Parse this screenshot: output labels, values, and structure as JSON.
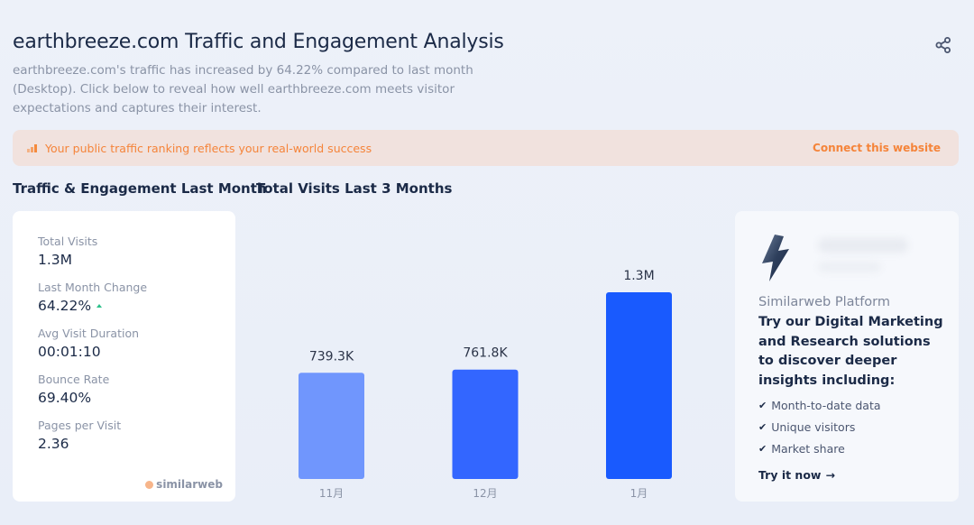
{
  "header": {
    "title": "earthbreeze.com Traffic and Engagement Analysis",
    "subtitle": "earthbreeze.com's traffic has increased by 64.22% compared to last month (Desktop). Click below to reveal how well earthbreeze.com meets visitor expectations and captures their interest.",
    "share_icon": "share-icon"
  },
  "banner": {
    "icon": "bar-chart-icon",
    "text": "Your public traffic ranking reflects your real-world success",
    "link": "Connect this website"
  },
  "sections": {
    "engagement_title": "Traffic & Engagement Last Month",
    "visits_title": "Total Visits Last 3 Months"
  },
  "stats": [
    {
      "label": "Total Visits",
      "value": "1.3M"
    },
    {
      "label": "Last Month Change",
      "value": "64.22%",
      "trend": "up"
    },
    {
      "label": "Avg Visit Duration",
      "value": "00:01:10"
    },
    {
      "label": "Bounce Rate",
      "value": "69.40%"
    },
    {
      "label": "Pages per Visit",
      "value": "2.36"
    }
  ],
  "brand": {
    "logo_text": "similarweb"
  },
  "colors": {
    "accent": "#195afe",
    "banner_text": "#f5843a",
    "trend_up": "#2cc08a"
  },
  "chart_data": {
    "type": "bar",
    "title": "Total Visits Last 3 Months",
    "categories": [
      "11月",
      "12月",
      "1月"
    ],
    "values": [
      739300,
      761800,
      1300000
    ],
    "data_labels": [
      "739.3K",
      "761.8K",
      "1.3M"
    ],
    "bar_colors": [
      "#7096fd",
      "#3366ff",
      "#195afe"
    ],
    "xlabel": "",
    "ylabel": "",
    "ylim": [
      0,
      1300000
    ],
    "grid": false
  },
  "promo": {
    "eyebrow": "Similarweb Platform",
    "headline": "Try our Digital Marketing and Research solutions to discover deeper insights including:",
    "features": [
      "Month-to-date data",
      "Unique visitors",
      "Market share"
    ],
    "cta": "Try it now",
    "cta_icon": "arrow-right-icon"
  }
}
